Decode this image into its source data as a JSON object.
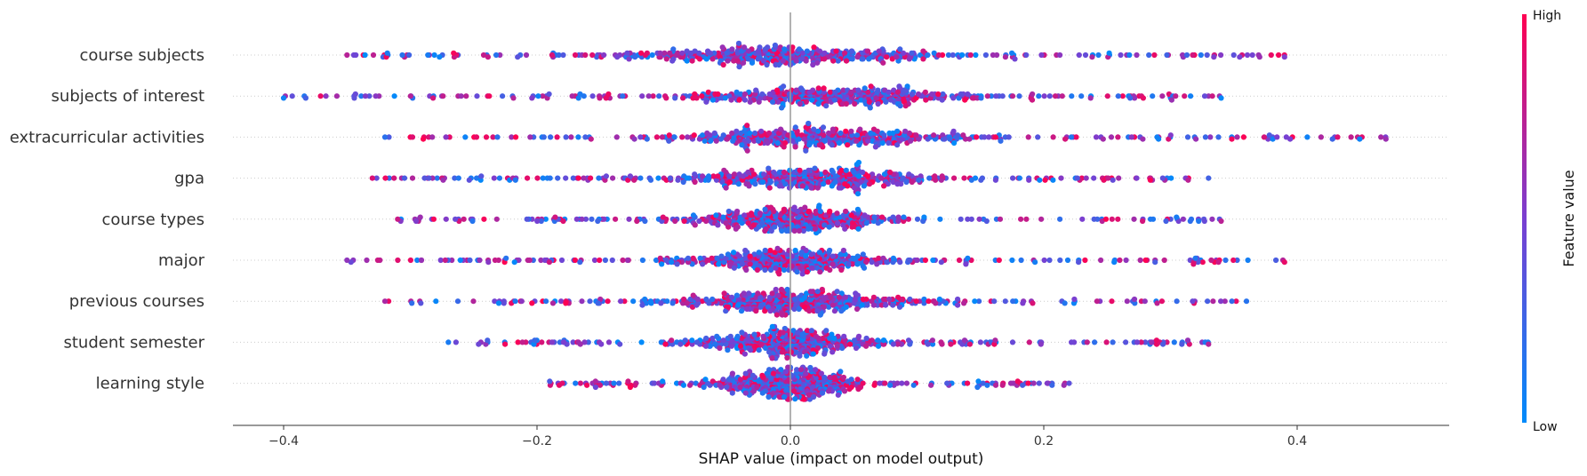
{
  "chart_data": {
    "type": "scatter",
    "subtype": "shap-beeswarm",
    "title": "",
    "xlabel": "SHAP value (impact on model output)",
    "ylabel": "",
    "xlim": [
      -0.44,
      0.52
    ],
    "xticks": [
      -0.4,
      -0.2,
      0.0,
      0.2,
      0.4
    ],
    "xtick_labels": [
      "−0.4",
      "−0.2",
      "0.0",
      "0.2",
      "0.4"
    ],
    "zero_line": 0.0,
    "grid": false,
    "colorbar": {
      "title": "Feature value",
      "high_label": "High",
      "low_label": "Low",
      "high_color": "#ff0052",
      "mid_color": "#7a3fd1",
      "low_color": "#008bfb"
    },
    "features": [
      {
        "name": "course subjects",
        "min": -0.35,
        "max": 0.39,
        "center": 0.0,
        "spread": 0.11,
        "high_side": "mixed"
      },
      {
        "name": "subjects of interest",
        "min": -0.4,
        "max": 0.34,
        "center": 0.03,
        "spread": 0.1,
        "high_side": "mixed"
      },
      {
        "name": "extracurricular activities",
        "min": -0.32,
        "max": 0.47,
        "center": 0.02,
        "spread": 0.1,
        "high_side": "mixed"
      },
      {
        "name": "gpa",
        "min": -0.33,
        "max": 0.33,
        "center": 0.02,
        "spread": 0.09,
        "high_side": "mixed"
      },
      {
        "name": "course types",
        "min": -0.31,
        "max": 0.34,
        "center": 0.0,
        "spread": 0.08,
        "high_side": "mixed"
      },
      {
        "name": "major",
        "min": -0.35,
        "max": 0.39,
        "center": 0.0,
        "spread": 0.08,
        "high_side": "mixed"
      },
      {
        "name": "previous courses",
        "min": -0.32,
        "max": 0.36,
        "center": 0.0,
        "spread": 0.08,
        "high_side": "mixed"
      },
      {
        "name": "student semester",
        "min": -0.27,
        "max": 0.33,
        "center": 0.0,
        "spread": 0.07,
        "high_side": "mixed"
      },
      {
        "name": "learning style",
        "min": -0.19,
        "max": 0.22,
        "center": 0.0,
        "spread": 0.05,
        "high_side": "mixed"
      }
    ]
  }
}
